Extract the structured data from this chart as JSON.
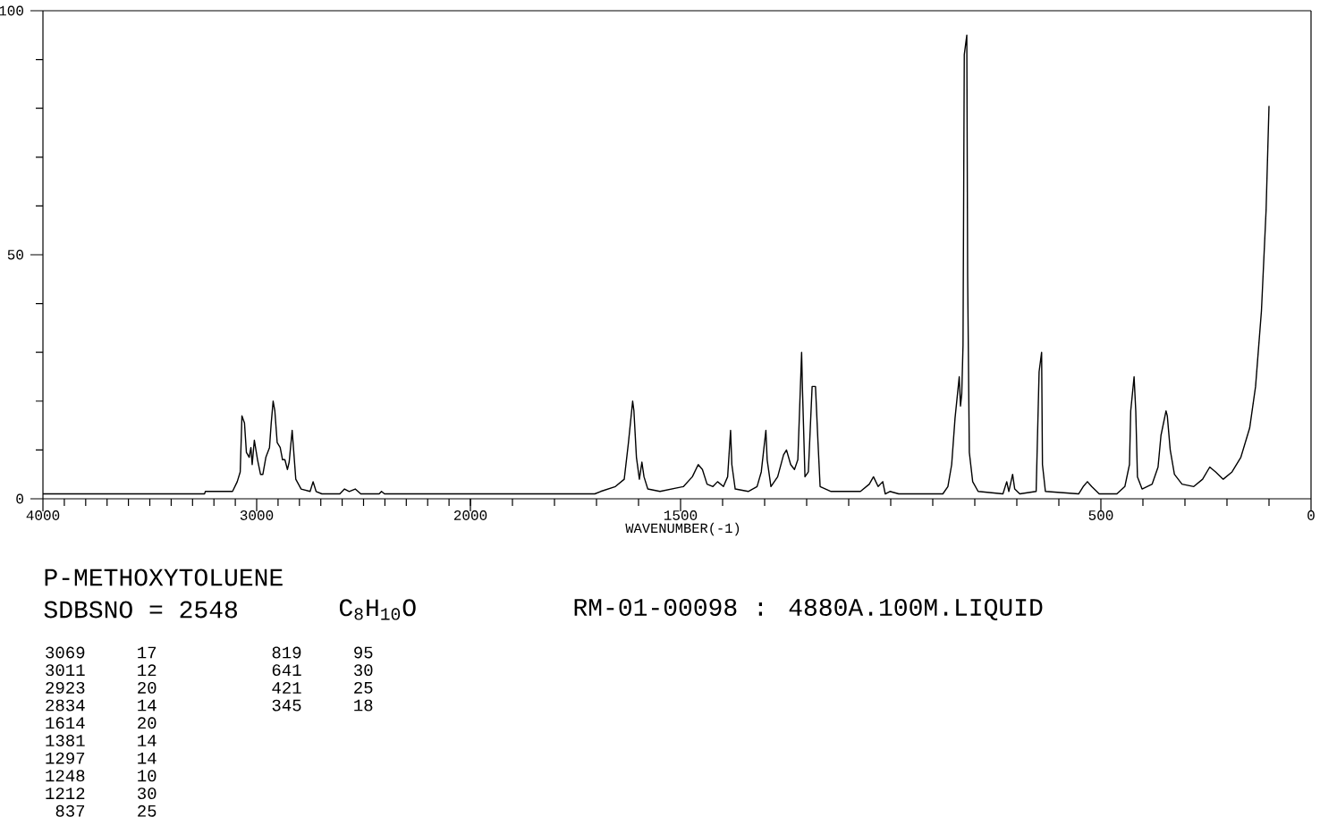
{
  "chart_data": [
    {
      "type": "line",
      "title": "P-METHOXYTOLUENE",
      "color": "#000000",
      "annotations": [
        "SDBSNO = 2548",
        "C$_{8}$H$_{10}$O",
        "RM-01-00098 : 4880A.100M.LIQUID",
        "3069",
        "17",
        "3011",
        "12",
        "2923",
        "20",
        "2834",
        "14",
        "1614",
        "20",
        "1381",
        "14",
        "1297",
        "14",
        "1248",
        "10",
        "1212",
        "30",
        "837",
        "25",
        "819",
        "95",
        "641",
        "30",
        "421",
        "25",
        "345",
        "18"
      ],
      "x": [
        4000,
        3244,
        3240,
        3113,
        3091,
        3077,
        3071,
        3069,
        3057,
        3048,
        3035,
        3027,
        3021,
        3011,
        2996,
        2982,
        2971,
        2957,
        2940,
        2932,
        2923,
        2915,
        2904,
        2890,
        2879,
        2868,
        2856,
        2848,
        2834,
        2828,
        2817,
        2792,
        2750,
        2736,
        2722,
        2695,
        2611,
        2589,
        2567,
        2539,
        2513,
        2427,
        2416,
        2402,
        2000
      ],
      "values": [
        1,
        1,
        1.5,
        1.5,
        3.5,
        5.5,
        14,
        17,
        15.5,
        9.5,
        8.5,
        10.5,
        7,
        12,
        8,
        5,
        5,
        8.5,
        10.5,
        15.5,
        20,
        18,
        11.5,
        10.5,
        8,
        8,
        6,
        7.5,
        14,
        10.5,
        4,
        2,
        1.5,
        3.5,
        1.5,
        1,
        1,
        2,
        1.5,
        2,
        1,
        1,
        1.5,
        1,
        1
      ],
      "xlim": [
        4000,
        2000
      ],
      "ylim": [
        0,
        100
      ],
      "xticks": [
        4000,
        {
          "value": 3900,
          "label": null
        },
        {
          "value": 3800,
          "label": null
        },
        {
          "value": 3700,
          "label": null
        },
        {
          "value": 3600,
          "label": null
        },
        {
          "value": 3500,
          "label": null
        },
        {
          "value": 3400,
          "label": null
        },
        {
          "value": 3300,
          "label": null
        },
        {
          "value": 3200,
          "label": null
        },
        {
          "value": 3100,
          "label": null
        },
        3000,
        {
          "value": 2900,
          "label": null
        },
        {
          "value": 2800,
          "label": null
        },
        {
          "value": 2700,
          "label": null
        },
        {
          "value": 2600,
          "label": null
        },
        {
          "value": 2500,
          "label": null
        },
        {
          "value": 2400,
          "label": null
        },
        {
          "value": 2300,
          "label": null
        },
        {
          "value": 2200,
          "label": null
        },
        {
          "value": 2100,
          "label": null
        },
        2000
      ],
      "yticks": [
        0,
        {
          "value": 10,
          "label": null
        },
        {
          "value": 20,
          "label": null
        },
        {
          "value": 30,
          "label": null
        },
        {
          "value": 40,
          "label": null
        },
        50,
        {
          "value": 60,
          "label": null
        },
        {
          "value": 70,
          "label": null
        },
        {
          "value": 80,
          "label": null
        },
        {
          "value": 90,
          "label": null
        },
        100
      ]
    },
    {
      "type": "line",
      "xlabel": "WAVENUMBER(-1)",
      "color": "#000000",
      "tick_labels": "x",
      "x": [
        2000,
        1704,
        1690,
        1655,
        1634,
        1624,
        1614,
        1611,
        1605,
        1598,
        1592,
        1587,
        1578,
        1549,
        1521,
        1493,
        1472,
        1458,
        1448,
        1437,
        1423,
        1412,
        1398,
        1388,
        1381,
        1378,
        1370,
        1339,
        1318,
        1308,
        1297,
        1294,
        1285,
        1269,
        1255,
        1248,
        1238,
        1229,
        1221,
        1212,
        1210,
        1204,
        1196,
        1187,
        1179,
        1173,
        1168,
        1142,
        1072,
        1051,
        1041,
        1030,
        1019,
        1013,
        1002,
        981,
        876,
        864,
        855,
        847,
        837,
        834,
        831,
        828,
        825,
        819,
        817,
        813,
        805,
        792,
        733,
        724,
        719,
        710,
        705,
        693,
        654,
        647,
        641,
        639,
        632,
        553,
        542,
        532,
        522,
        504,
        462,
        443,
        432,
        429,
        421,
        417,
        413,
        402,
        378,
        364,
        357,
        345,
        342,
        335,
        325,
        307,
        279,
        258,
        241,
        227,
        209,
        188,
        167,
        146,
        132,
        118,
        107,
        100
      ],
      "values": [
        1,
        1,
        1.5,
        2.5,
        4,
        11.5,
        20,
        18,
        8.5,
        4,
        7.5,
        4.5,
        2,
        1.5,
        2,
        2.5,
        4.5,
        7,
        6,
        3,
        2.5,
        3.5,
        2.5,
        4.5,
        14,
        7,
        2,
        1.5,
        2.5,
        5.5,
        14,
        8,
        2.5,
        4.5,
        9,
        10,
        7,
        6,
        8,
        30,
        22.5,
        4.5,
        5.5,
        23,
        23,
        11.5,
        2.5,
        1.5,
        1.5,
        3,
        4.5,
        2.5,
        3.5,
        1,
        1.5,
        1,
        1,
        2.5,
        7,
        16.5,
        25,
        19,
        21.5,
        31.5,
        91,
        95,
        45.5,
        9.5,
        3.5,
        1.5,
        1,
        3.5,
        1.5,
        5,
        2,
        1,
        1.5,
        26,
        30,
        7,
        1.5,
        1,
        2.5,
        3.5,
        2.5,
        1,
        1,
        2.5,
        7,
        18,
        25,
        18,
        4.5,
        2,
        3,
        6.5,
        13,
        18,
        17,
        10,
        5,
        3,
        2.5,
        4,
        6.5,
        5.5,
        4,
        5.5,
        8.5,
        14.5,
        23,
        38.5,
        59,
        80.5
      ],
      "xlim": [
        2000,
        0
      ],
      "ylim": [
        0,
        100
      ],
      "xticks": [
        {
          "value": 2000,
          "label": null
        },
        {
          "value": 1900,
          "label": null
        },
        {
          "value": 1800,
          "label": null
        },
        {
          "value": 1700,
          "label": null
        },
        {
          "value": 1600,
          "label": null
        },
        1500,
        {
          "value": 1400,
          "label": null
        },
        {
          "value": 1300,
          "label": null
        },
        {
          "value": 1200,
          "label": null
        },
        {
          "value": 1100,
          "label": null
        },
        {
          "value": 1000,
          "label": null
        },
        {
          "value": 900,
          "label": null
        },
        {
          "value": 800,
          "label": null
        },
        {
          "value": 700,
          "label": null
        },
        {
          "value": 600,
          "label": null
        },
        500,
        {
          "value": 400,
          "label": null
        },
        {
          "value": 300,
          "label": null
        },
        {
          "value": 200,
          "label": null
        },
        {
          "value": 100,
          "label": null
        },
        0
      ]
    }
  ]
}
